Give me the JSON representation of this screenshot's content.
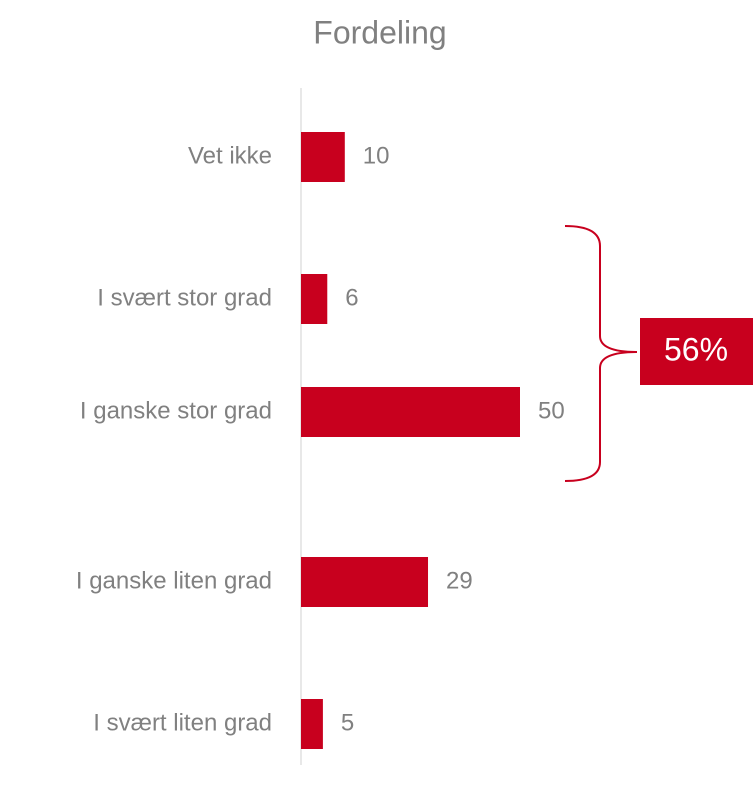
{
  "chart_data": {
    "type": "bar",
    "orientation": "horizontal",
    "title": "Fordeling",
    "categories": [
      "Vet ikke",
      "I svært stor grad",
      "I ganske stor grad",
      "I ganske liten grad",
      "I svært liten grad"
    ],
    "values": [
      10,
      6,
      50,
      29,
      5
    ],
    "color": "#c8001e",
    "annotation": "56%"
  }
}
